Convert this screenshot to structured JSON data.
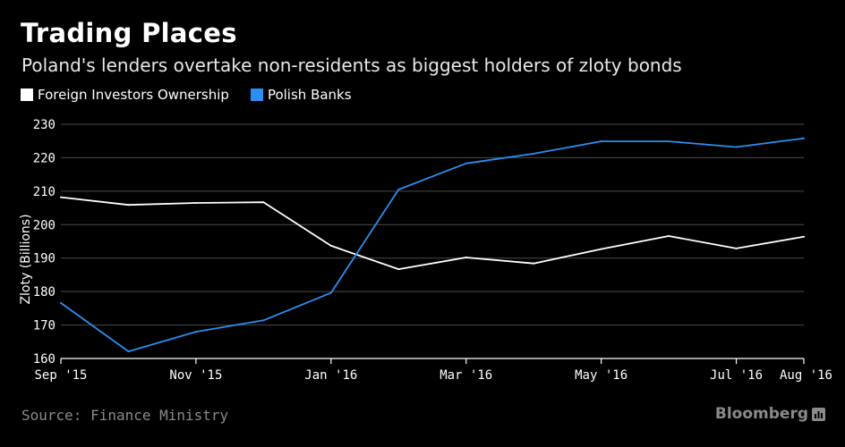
{
  "chart_data": {
    "type": "line",
    "title": "Trading Places",
    "subtitle": "Poland's lenders overtake non-residents as biggest holders of zloty bonds",
    "xlabel": "",
    "ylabel": "Zloty (Billions)",
    "ylim": [
      160,
      230
    ],
    "yticks": [
      160,
      170,
      180,
      190,
      200,
      210,
      220,
      230
    ],
    "grid": true,
    "legend_position": "top-left",
    "categories": [
      "Sep 2015",
      "Oct 2015",
      "Nov 2015",
      "Dec 2015",
      "Jan 2016",
      "Feb 2016",
      "Mar 2016",
      "Apr 2016",
      "May 2016",
      "Jun 2016",
      "Jul 2016",
      "Aug 2016"
    ],
    "x": [
      0,
      1,
      2,
      3,
      4,
      5,
      6,
      7,
      8,
      9,
      10,
      11
    ],
    "xlim": [
      0,
      11
    ],
    "xticks": [
      {
        "x": 0,
        "label": "Sep '15"
      },
      {
        "x": 2,
        "label": "Nov '15"
      },
      {
        "x": 4,
        "label": "Jan '16"
      },
      {
        "x": 6,
        "label": "Mar '16"
      },
      {
        "x": 8,
        "label": "May '16"
      },
      {
        "x": 10,
        "label": "Jul '16"
      },
      {
        "x": 11,
        "label": "Aug '16"
      }
    ],
    "series": [
      {
        "name": "Foreign Investors Ownership",
        "color": "#ffffff",
        "values": [
          208.2,
          205.9,
          206.5,
          206.7,
          193.7,
          186.7,
          190.2,
          188.4,
          192.7,
          196.6,
          192.9,
          196.4
        ]
      },
      {
        "name": "Polish Banks",
        "color": "#2c8ef0",
        "values": [
          176.6,
          162.1,
          168.0,
          171.4,
          179.6,
          210.5,
          218.3,
          221.2,
          224.9,
          224.9,
          223.2,
          225.8
        ]
      }
    ]
  },
  "footer": {
    "source": "Source: Finance Ministry",
    "brand": "Bloomberg"
  },
  "colors": {
    "background": "#000000",
    "grid": "#4a4a4a",
    "axis": "#ffffff",
    "muted": "#8a8a8a"
  }
}
